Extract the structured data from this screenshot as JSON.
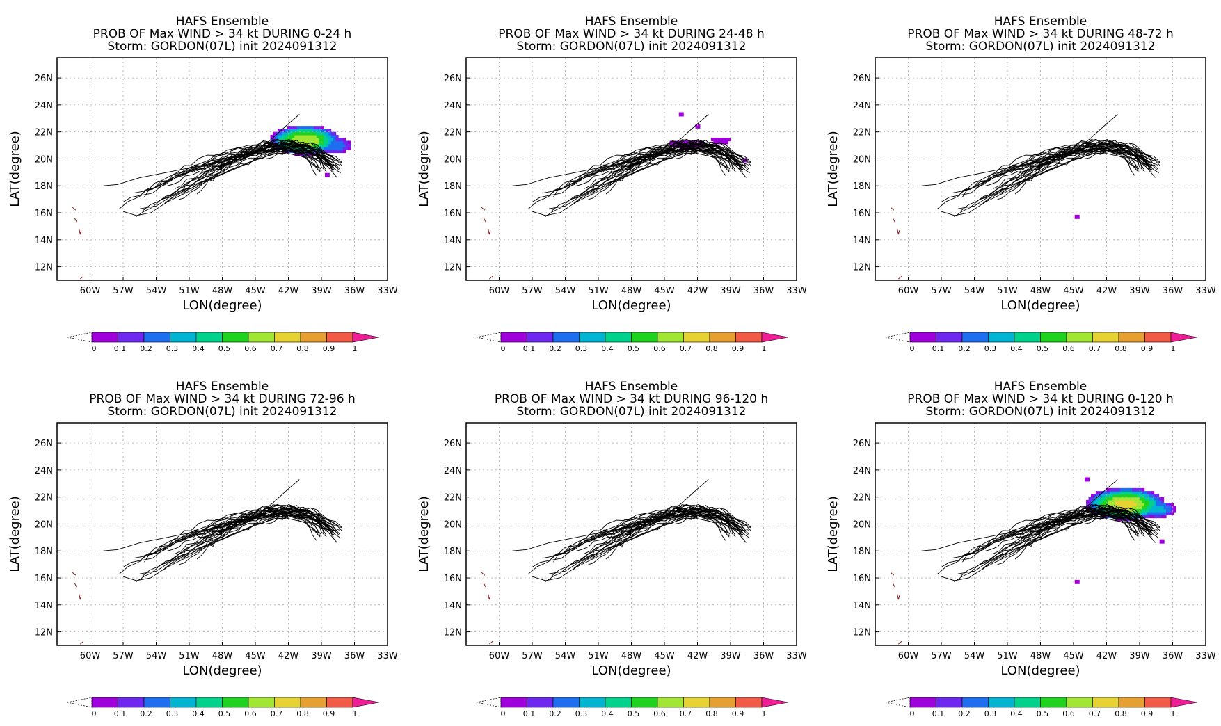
{
  "figure": {
    "palette": [
      "#a000dc",
      "#6e28f0",
      "#1e6ef0",
      "#00b4d2",
      "#00d28c",
      "#1ed21e",
      "#a0e632",
      "#e6d232",
      "#e6a032",
      "#f05a46",
      "#f01e96"
    ],
    "colorbar_ticks": [
      "0",
      "0.1",
      "0.2",
      "0.3",
      "0.4",
      "0.5",
      "0.6",
      "0.7",
      "0.8",
      "0.9",
      "1"
    ]
  },
  "chart_data": [
    {
      "type": "heatmap",
      "title": "HAFS Ensemble",
      "subtitle": "PROB OF Max WIND > 34 kt DURING  0-24 h",
      "storm_line": "Storm: GORDON(07L) init 2024091312",
      "xlabel": "LON(degree)",
      "ylabel": "LAT(degree)",
      "xlim": [
        -63,
        -33
      ],
      "ylim": [
        11,
        27.5
      ],
      "xticks": [
        "60W",
        "57W",
        "54W",
        "51W",
        "48W",
        "45W",
        "42W",
        "39W",
        "36W",
        "33W"
      ],
      "yticks": [
        "12N",
        "14N",
        "16N",
        "18N",
        "20N",
        "22N",
        "24N",
        "26N"
      ],
      "grid": true,
      "prob_blobs": [
        {
          "lon": -40.5,
          "lat": 21.4,
          "rx": 3.2,
          "ry": 1.1,
          "peak": 0.65
        },
        {
          "lon": -37.8,
          "lat": 21.0,
          "rx": 1.5,
          "ry": 0.6,
          "peak": 0.25
        }
      ],
      "prob_specks": [
        {
          "lon": -38.5,
          "lat": 18.8,
          "p": 0.05
        }
      ]
    },
    {
      "type": "heatmap",
      "title": "HAFS Ensemble",
      "subtitle": "PROB OF Max WIND > 34 kt DURING 24-48 h",
      "storm_line": "Storm: GORDON(07L) init 2024091312",
      "xlabel": "LON(degree)",
      "ylabel": "LAT(degree)",
      "xlim": [
        -63,
        -33
      ],
      "ylim": [
        11,
        27.5
      ],
      "xticks": [
        "60W",
        "57W",
        "54W",
        "51W",
        "48W",
        "45W",
        "42W",
        "39W",
        "36W",
        "33W"
      ],
      "yticks": [
        "12N",
        "14N",
        "16N",
        "18N",
        "20N",
        "22N",
        "24N",
        "26N"
      ],
      "grid": true,
      "prob_blobs": [
        {
          "lon": -43.0,
          "lat": 21.1,
          "rx": 1.6,
          "ry": 0.35,
          "peak": 0.05
        },
        {
          "lon": -40.0,
          "lat": 21.4,
          "rx": 0.9,
          "ry": 0.25,
          "peak": 0.05
        }
      ],
      "prob_specks": [
        {
          "lon": -43.5,
          "lat": 23.3,
          "p": 0.05
        },
        {
          "lon": -42.0,
          "lat": 22.4,
          "p": 0.05
        },
        {
          "lon": -37.7,
          "lat": 19.9,
          "p": 0.05
        }
      ]
    },
    {
      "type": "heatmap",
      "title": "HAFS Ensemble",
      "subtitle": "PROB OF Max WIND > 34 kt DURING 48-72 h",
      "storm_line": "Storm: GORDON(07L) init 2024091312",
      "xlabel": "LON(degree)",
      "ylabel": "LAT(degree)",
      "xlim": [
        -63,
        -33
      ],
      "ylim": [
        11,
        27.5
      ],
      "xticks": [
        "60W",
        "57W",
        "54W",
        "51W",
        "48W",
        "45W",
        "42W",
        "39W",
        "36W",
        "33W"
      ],
      "yticks": [
        "12N",
        "14N",
        "16N",
        "18N",
        "20N",
        "22N",
        "24N",
        "26N"
      ],
      "grid": true,
      "prob_blobs": [],
      "prob_specks": [
        {
          "lon": -44.7,
          "lat": 15.7,
          "p": 0.05
        }
      ]
    },
    {
      "type": "heatmap",
      "title": "HAFS Ensemble",
      "subtitle": "PROB OF Max WIND > 34 kt DURING 72-96 h",
      "storm_line": "Storm: GORDON(07L) init 2024091312",
      "xlabel": "LON(degree)",
      "ylabel": "LAT(degree)",
      "xlim": [
        -63,
        -33
      ],
      "ylim": [
        11,
        27.5
      ],
      "xticks": [
        "60W",
        "57W",
        "54W",
        "51W",
        "48W",
        "45W",
        "42W",
        "39W",
        "36W",
        "33W"
      ],
      "yticks": [
        "12N",
        "14N",
        "16N",
        "18N",
        "20N",
        "22N",
        "24N",
        "26N"
      ],
      "grid": true,
      "prob_blobs": [],
      "prob_specks": []
    },
    {
      "type": "heatmap",
      "title": "HAFS Ensemble",
      "subtitle": "PROB OF Max WIND > 34 kt DURING 96-120 h",
      "storm_line": "Storm: GORDON(07L) init 2024091312",
      "xlabel": "LON(degree)",
      "ylabel": "LAT(degree)",
      "xlim": [
        -63,
        -33
      ],
      "ylim": [
        11,
        27.5
      ],
      "xticks": [
        "60W",
        "57W",
        "54W",
        "51W",
        "48W",
        "45W",
        "42W",
        "39W",
        "36W",
        "33W"
      ],
      "yticks": [
        "12N",
        "14N",
        "16N",
        "18N",
        "20N",
        "22N",
        "24N",
        "26N"
      ],
      "grid": true,
      "prob_blobs": [],
      "prob_specks": []
    },
    {
      "type": "heatmap",
      "title": "HAFS Ensemble",
      "subtitle": "PROB OF Max WIND > 34 kt DURING 0-120 h",
      "storm_line": "Storm: GORDON(07L) init 2024091312",
      "xlabel": "LON(degree)",
      "ylabel": "LAT(degree)",
      "xlim": [
        -63,
        -33
      ],
      "ylim": [
        11,
        27.5
      ],
      "xticks": [
        "60W",
        "57W",
        "54W",
        "51W",
        "48W",
        "45W",
        "42W",
        "39W",
        "36W",
        "33W"
      ],
      "yticks": [
        "12N",
        "14N",
        "16N",
        "18N",
        "20N",
        "22N",
        "24N",
        "26N"
      ],
      "grid": true,
      "prob_blobs": [
        {
          "lon": -40.3,
          "lat": 21.5,
          "rx": 3.6,
          "ry": 1.2,
          "peak": 0.7
        },
        {
          "lon": -37.3,
          "lat": 21.1,
          "rx": 1.6,
          "ry": 0.6,
          "peak": 0.3
        }
      ],
      "prob_specks": [
        {
          "lon": -43.8,
          "lat": 23.3,
          "p": 0.05
        },
        {
          "lon": -44.7,
          "lat": 15.7,
          "p": 0.05
        },
        {
          "lon": -37.0,
          "lat": 18.7,
          "p": 0.05
        }
      ]
    }
  ]
}
